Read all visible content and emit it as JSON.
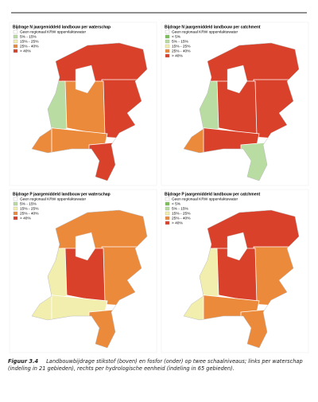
{
  "panels": [
    {
      "title": "Bijdrage N jaargemiddeld landbouw per waterschap",
      "legend": [
        {
          "label": "Geen regionaal KRW oppervlaktewater",
          "color": "#ffffff"
        },
        {
          "label": "5% - 15%",
          "color": "#b8dca2"
        },
        {
          "label": "15% - 25%",
          "color": "#f2efae"
        },
        {
          "label": "25% - 40%",
          "color": "#ec8a3c"
        },
        {
          "label": "> 40%",
          "color": "#d9412a"
        }
      ]
    },
    {
      "title": "Bijdrage N jaargemiddeld landbouw per catchment",
      "legend": [
        {
          "label": "Geen regionaal KRW oppervlaktewater",
          "color": "#ffffff"
        },
        {
          "label": "< 5%",
          "color": "#7cc05c"
        },
        {
          "label": "5% - 15%",
          "color": "#b8dca2"
        },
        {
          "label": "15% - 25%",
          "color": "#f2efae"
        },
        {
          "label": "25% - 40%",
          "color": "#ec8a3c"
        },
        {
          "label": "> 40%",
          "color": "#d9412a"
        }
      ]
    },
    {
      "title": "Bijdrage P jaargemiddeld landbouw per waterschap",
      "legend": [
        {
          "label": "Geen regionaal KRW oppervlaktewater",
          "color": "#ffffff"
        },
        {
          "label": "5% - 15%",
          "color": "#b8dca2"
        },
        {
          "label": "15% - 25%",
          "color": "#f2efae"
        },
        {
          "label": "25% - 40%",
          "color": "#ec8a3c"
        },
        {
          "label": "> 40%",
          "color": "#d9412a"
        }
      ]
    },
    {
      "title": "Bijdrage P jaargemiddeld landbouw per catchment",
      "legend": [
        {
          "label": "Geen regionaal KRW oppervlaktewater",
          "color": "#ffffff"
        },
        {
          "label": "< 5%",
          "color": "#7cc05c"
        },
        {
          "label": "5% - 15%",
          "color": "#b8dca2"
        },
        {
          "label": "15% - 25%",
          "color": "#f2efae"
        },
        {
          "label": "25% - 40%",
          "color": "#ec8a3c"
        },
        {
          "label": "> 40%",
          "color": "#d9412a"
        }
      ]
    }
  ],
  "caption": {
    "label": "Figuur 3.4",
    "text": "Landbouwbijdrage stikstof (boven) en fosfor (onder) op twee schaalniveaus; links per waterschap (indeling in 21 gebieden), rechts per hydrologische eenheid (indeling in 65 gebieden)."
  }
}
